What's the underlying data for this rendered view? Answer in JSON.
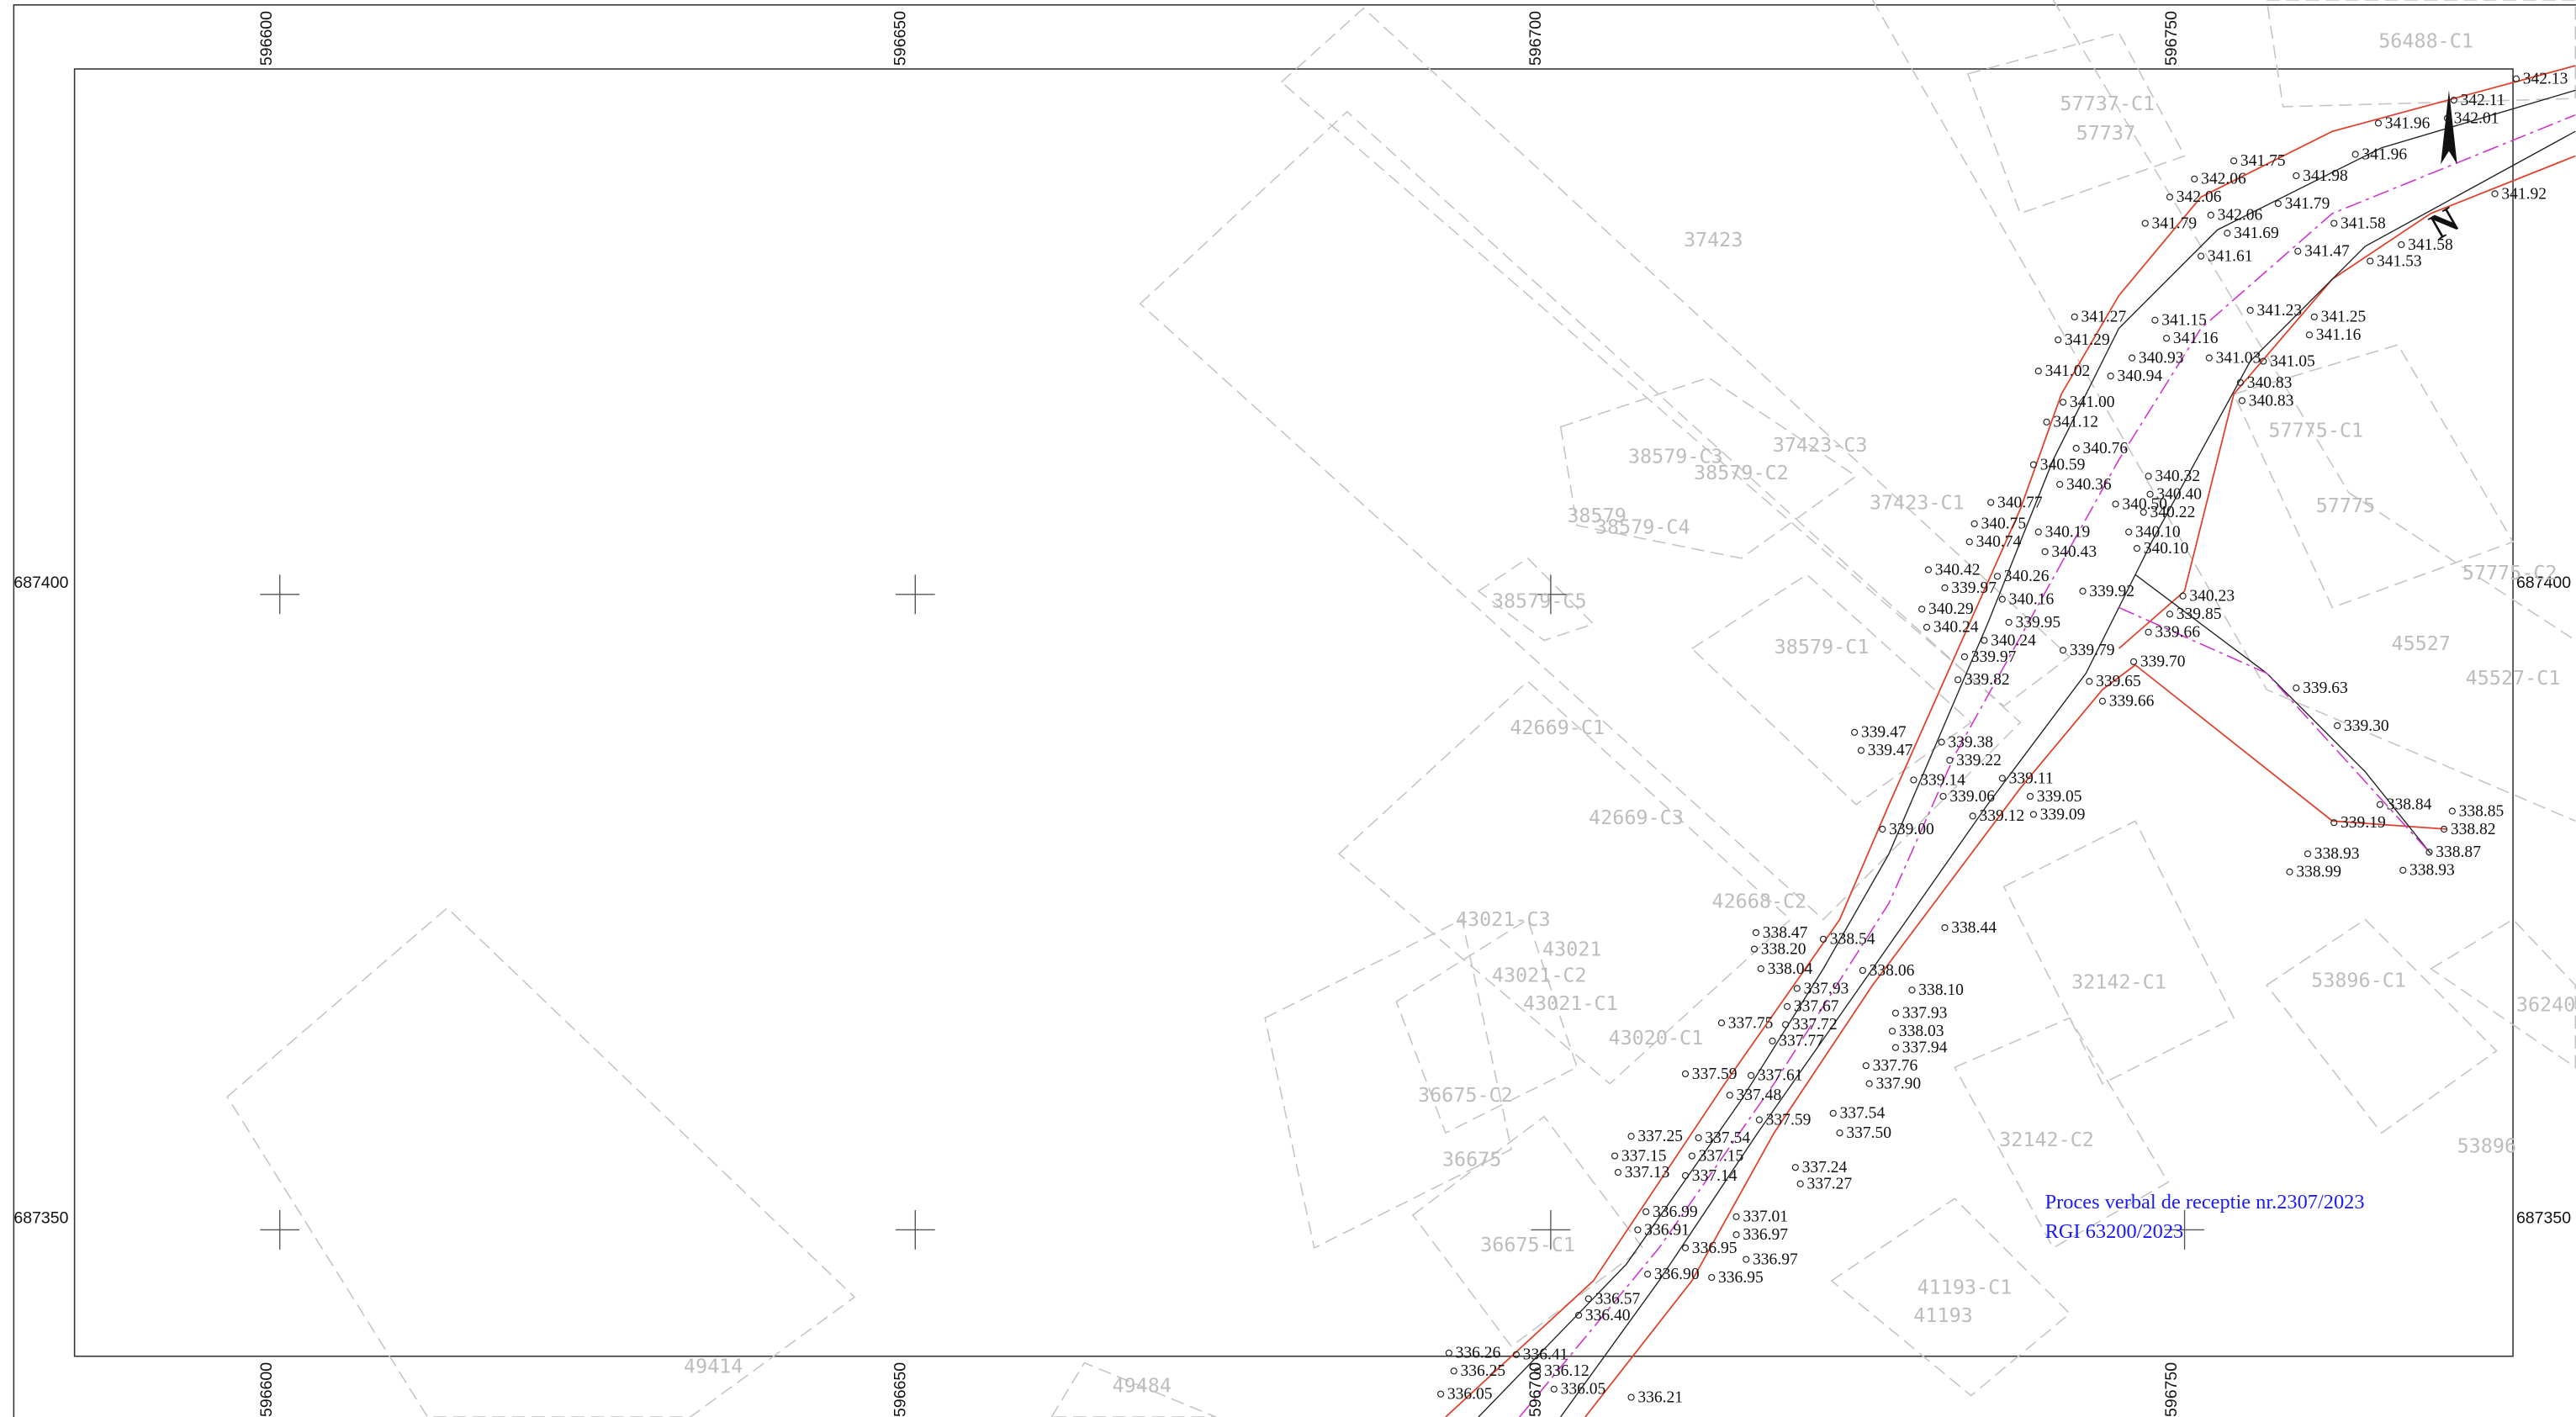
{
  "grid": {
    "x_labels": [
      "596600",
      "596650",
      "596700",
      "596750"
    ],
    "y_labels": [
      "687400",
      "687350"
    ]
  },
  "parcels": [
    "56488-C1",
    "57737-C1",
    "57737",
    "37423",
    "38579-C3",
    "37423-C3",
    "38579-C2",
    "37423-C1",
    "38579",
    "38579-C4",
    "38579-C5",
    "38579-C1",
    "57775-C1",
    "57775",
    "57775-C2",
    "45527",
    "45527-C1",
    "42669-C1",
    "42669-C3",
    "42668-C2",
    "43021-C3",
    "43021",
    "43021-C2",
    "43021-C1",
    "43020-C1",
    "36675-C2",
    "36675",
    "36675-C1",
    "32142-C1",
    "53896-C1",
    "32142-C2",
    "53896",
    "41193-C1",
    "41193",
    "49414",
    "49484",
    "36240"
  ],
  "elevations": [
    "342.13",
    "342.11",
    "342.01",
    "341.96",
    "341.96",
    "341.75",
    "341.98",
    "342.06",
    "342.06",
    "341.79",
    "342.06",
    "341.92",
    "341.79",
    "341.69",
    "341.58",
    "341.47",
    "341.58",
    "341.53",
    "341.61",
    "341.27",
    "341.15",
    "341.23",
    "341.25",
    "341.29",
    "341.16",
    "341.16",
    "340.93",
    "341.03",
    "341.05",
    "341.02",
    "340.94",
    "340.83",
    "341.00",
    "340.83",
    "341.12",
    "340.76",
    "340.59",
    "340.32",
    "340.36",
    "340.40",
    "340.77",
    "340.50",
    "340.22",
    "340.75",
    "340.19",
    "340.10",
    "340.74",
    "340.43",
    "340.10",
    "340.42",
    "340.26",
    "339.97",
    "339.92",
    "340.23",
    "340.16",
    "340.29",
    "339.85",
    "339.95",
    "340.24",
    "339.66",
    "340.24",
    "339.79",
    "339.97",
    "339.70",
    "339.82",
    "339.65",
    "339.63",
    "339.66",
    "339.47",
    "339.30",
    "339.38",
    "339.47",
    "339.22",
    "339.11",
    "339.14",
    "339.06",
    "339.05",
    "338.84",
    "338.85",
    "339.12",
    "339.09",
    "339.19",
    "339.00",
    "338.82",
    "338.87",
    "338.93",
    "338.99",
    "338.93",
    "338.44",
    "338.47",
    "338.54",
    "338.20",
    "338.04",
    "338.06",
    "337.93",
    "338.10",
    "337.67",
    "337.93",
    "337.75",
    "337.72",
    "338.03",
    "337.77",
    "337.94",
    "337.76",
    "337.59",
    "337.61",
    "337.90",
    "337.48",
    "337.59",
    "337.54",
    "337.50",
    "337.25",
    "337.54",
    "337.15",
    "337.15",
    "337.13",
    "337.14",
    "337.24",
    "337.27",
    "337.01",
    "336.99",
    "336.97",
    "336.91",
    "336.95",
    "336.97",
    "336.90",
    "336.95",
    "336.57",
    "336.40",
    "336.26",
    "336.41",
    "336.25",
    "336.12",
    "336.05",
    "336.05",
    "336.21"
  ],
  "note": {
    "line1": "Proces verbal de receptie nr.2307/2023",
    "line2": "RGI 63200/2023"
  }
}
